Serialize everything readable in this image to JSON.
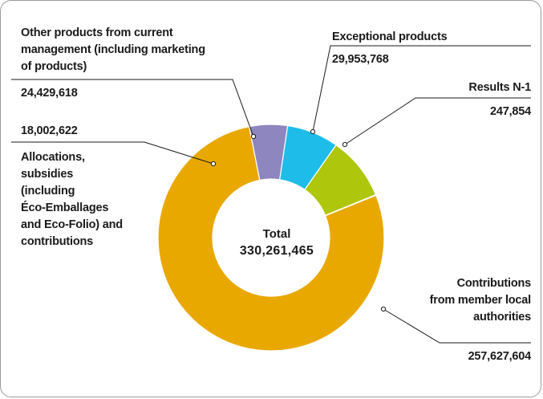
{
  "chart_data": {
    "type": "pie",
    "variant": "donut",
    "categories": [
      "Contributions\nfrom member local\nauthorities",
      "Allocations,\nsubsidies\n(including\nÉco-Emballages\nand Eco-Folio) and\ncontributions",
      "Other products from current\nmanagement (including marketing\nof products)",
      "Exceptional products",
      "Results N-1"
    ],
    "values": [
      257627604,
      18002622,
      24429618,
      29953768,
      247854
    ],
    "value_labels": [
      "257,627,604",
      "18,002,622",
      "24,429,618",
      "29,953,768",
      "247,854"
    ],
    "colors": [
      "#e9a800",
      "#8d86bf",
      "#1ebce9",
      "#aec60c",
      "#e9a800"
    ],
    "total_label": "Total",
    "total_value": "330,261,465",
    "title": "",
    "legend": "none"
  }
}
